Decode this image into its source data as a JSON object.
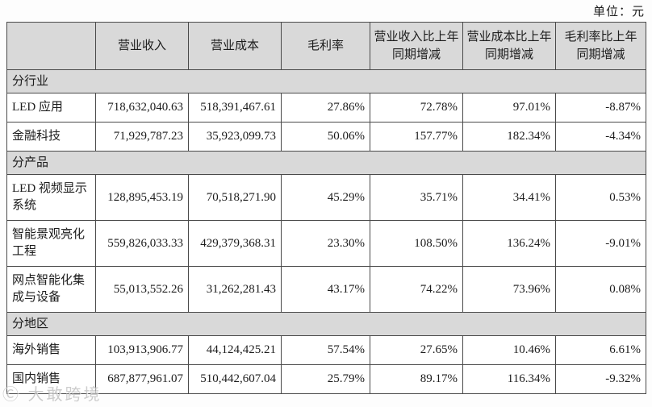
{
  "unit_label": "单位：元",
  "watermark": "Ⓒ 大敢跨境",
  "colors": {
    "header_bg": "#d9d9d9",
    "section_bg": "#d9d9d9",
    "border": "#4a4a4a",
    "text": "#1c1c1c",
    "page_bg": "#fdfdfd"
  },
  "table": {
    "columns": [
      "",
      "营业收入",
      "营业成本",
      "毛利率",
      "营业收入比上年同期增减",
      "营业成本比上年同期增减",
      "毛利率比上年同期增减"
    ],
    "rows": [
      {
        "type": "section",
        "label": "分行业"
      },
      {
        "type": "data",
        "label": "LED 应用",
        "values": [
          "718,632,040.63",
          "518,391,467.61",
          "27.86%",
          "72.78%",
          "97.01%",
          "-8.87%"
        ]
      },
      {
        "type": "data",
        "label": "金融科技",
        "values": [
          "71,929,787.23",
          "35,923,099.73",
          "50.06%",
          "157.77%",
          "182.34%",
          "-4.34%"
        ]
      },
      {
        "type": "section",
        "label": "分产品"
      },
      {
        "type": "data",
        "label": "LED 视频显示系统",
        "values": [
          "128,895,453.19",
          "70,518,271.90",
          "45.29%",
          "35.71%",
          "34.41%",
          "0.53%"
        ]
      },
      {
        "type": "data",
        "label": "智能景观亮化工程",
        "values": [
          "559,826,033.33",
          "429,379,368.31",
          "23.30%",
          "108.50%",
          "136.24%",
          "-9.01%"
        ]
      },
      {
        "type": "data",
        "label": "网点智能化集成与设备",
        "values": [
          "55,013,552.26",
          "31,262,281.43",
          "43.17%",
          "74.22%",
          "73.96%",
          "0.08%"
        ]
      },
      {
        "type": "section",
        "label": "分地区"
      },
      {
        "type": "data",
        "label": "海外销售",
        "values": [
          "103,913,906.77",
          "44,124,425.21",
          "57.54%",
          "27.65%",
          "10.46%",
          "6.61%"
        ]
      },
      {
        "type": "data",
        "label": "国内销售",
        "values": [
          "687,877,961.07",
          "510,442,607.04",
          "25.79%",
          "89.17%",
          "116.34%",
          "-9.32%"
        ]
      }
    ]
  }
}
